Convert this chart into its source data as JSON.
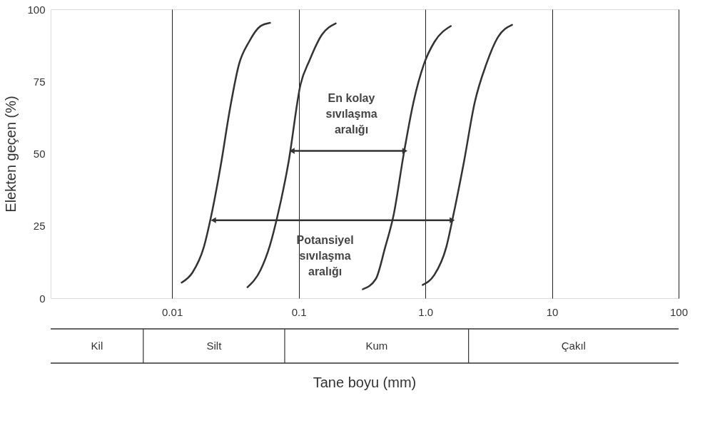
{
  "chart_data": {
    "type": "line",
    "xlabel": "Tane boyu (mm)",
    "ylabel": "Elekten geçen (%)",
    "log": "x",
    "grid": "x",
    "marker": "none",
    "line_style": "solid",
    "xlim": [
      0.0011,
      100
    ],
    "xticks": [
      0.01,
      0.1,
      {
        "value": 1,
        "label": "1.0"
      },
      10,
      100
    ],
    "ylim": [
      0,
      100
    ],
    "yticks": [
      0,
      25,
      50,
      75,
      100
    ],
    "series": [
      {
        "color": "#333333",
        "x": [
          0.0119,
          0.0145,
          0.0178,
          0.0202,
          0.0242,
          0.0286,
          0.0338,
          0.0405,
          0.0497,
          0.0594
        ],
        "values": [
          5.4,
          8.9,
          17.6,
          27.7,
          45.8,
          65.3,
          81.0,
          88.7,
          94.1,
          95.3
        ]
      },
      {
        "color": "#333333",
        "x": [
          0.0394,
          0.0499,
          0.0593,
          0.0674,
          0.0833,
          0.1033,
          0.122,
          0.152,
          0.196
        ],
        "values": [
          3.8,
          9.7,
          18.3,
          27.7,
          47.3,
          73.9,
          82.4,
          91.1,
          95.1
        ]
      },
      {
        "color": "#333333",
        "x": [
          0.321,
          0.406,
          0.481,
          0.56,
          0.678,
          0.804,
          0.975,
          1.18,
          1.59
        ],
        "values": [
          3.1,
          6.6,
          17.5,
          28.5,
          50.4,
          67.6,
          81.0,
          88.7,
          94.2
        ]
      },
      {
        "color": "#333333",
        "x": [
          0.953,
          1.18,
          1.46,
          1.66,
          2.02,
          2.45,
          3.03,
          3.75,
          4.84
        ],
        "values": [
          4.6,
          8.1,
          17.5,
          28.5,
          47.3,
          67.6,
          81.0,
          90.4,
          94.6
        ]
      },
      {
        "color": "#333333",
        "marker": "triangle",
        "x": [
          0.0885,
          0.689
        ],
        "values": [
          51,
          51
        ]
      },
      {
        "color": "#333333",
        "marker": "triangle",
        "x": [
          0.0212,
          1.63
        ],
        "values": [
          27,
          27
        ]
      }
    ],
    "annotations": [
      "En kolay\nsıvılaşma\naralığı",
      "Potansiyel\nsıvılaşma\naralığı",
      "Kil",
      "Silt",
      "Kum",
      "Çakıl"
    ]
  }
}
